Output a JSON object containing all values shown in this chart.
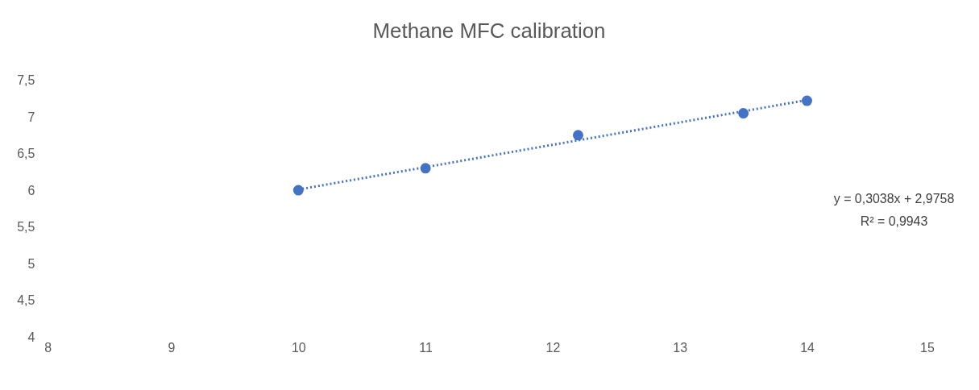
{
  "chart_data": {
    "type": "scatter",
    "title": "Methane MFC calibration",
    "x": [
      10,
      11,
      12.2,
      13.5,
      14
    ],
    "series": [
      {
        "color": "#4472c4",
        "marker": "circle",
        "values": [
          6.0,
          6.3,
          6.75,
          7.05,
          7.22
        ]
      },
      {
        "type": "line",
        "color": "#4472c4",
        "marker": "none",
        "line_style": "dotted",
        "x": [
          10,
          14
        ],
        "values": [
          6.01,
          7.23
        ]
      }
    ],
    "xlim": [
      8,
      15
    ],
    "xticks": [
      8,
      9,
      10,
      11,
      12,
      13,
      14,
      15
    ],
    "ylim": [
      4,
      7.5
    ],
    "yticks": [
      4,
      {
        "value": 4.5,
        "label": "4,5"
      },
      5,
      {
        "value": 5.5,
        "label": "5,5"
      },
      6,
      {
        "value": 6.5,
        "label": "6,5"
      },
      7,
      {
        "value": 7.5,
        "label": "7,5"
      }
    ],
    "grid": false,
    "legend": false,
    "annotations": [
      "y = 0,3038x + 2,9758",
      "R² = 0,9943"
    ]
  }
}
